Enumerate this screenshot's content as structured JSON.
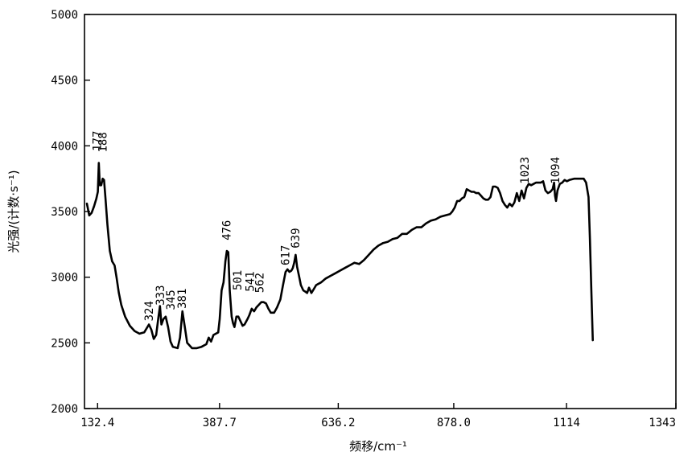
{
  "chart_data": {
    "type": "line",
    "title": "",
    "xlabel": "频移/cm⁻¹",
    "ylabel": "光强/(计数·s⁻¹)",
    "xlim": [
      105,
      1343
    ],
    "ylim": [
      2000,
      5000
    ],
    "x_ticks": [
      {
        "value": 132.4,
        "label": "132.4"
      },
      {
        "value": 387.7,
        "label": "387.7"
      },
      {
        "value": 636.2,
        "label": "636.2"
      },
      {
        "value": 878.0,
        "label": "878.0"
      },
      {
        "value": 1114,
        "label": "1114"
      },
      {
        "value": 1343,
        "label": "1343"
      }
    ],
    "y_ticks": [
      {
        "value": 2000,
        "label": "2000"
      },
      {
        "value": 2500,
        "label": "2500"
      },
      {
        "value": 3000,
        "label": "3000"
      },
      {
        "value": 3500,
        "label": "3500"
      },
      {
        "value": 4000,
        "label": "4000"
      },
      {
        "value": 4500,
        "label": "4500"
      },
      {
        "value": 5000,
        "label": "5000"
      }
    ],
    "grid": false,
    "series": [
      {
        "color": "#000000",
        "points": [
          [
            110,
            3560
          ],
          [
            115,
            3470
          ],
          [
            120,
            3490
          ],
          [
            125,
            3540
          ],
          [
            130,
            3600
          ],
          [
            133,
            3650
          ],
          [
            135,
            3870
          ],
          [
            137,
            3700
          ],
          [
            140,
            3700
          ],
          [
            143,
            3750
          ],
          [
            146,
            3740
          ],
          [
            149,
            3600
          ],
          [
            153,
            3400
          ],
          [
            158,
            3200
          ],
          [
            163,
            3120
          ],
          [
            168,
            3090
          ],
          [
            172,
            3000
          ],
          [
            177,
            2880
          ],
          [
            182,
            2790
          ],
          [
            190,
            2700
          ],
          [
            200,
            2630
          ],
          [
            210,
            2590
          ],
          [
            220,
            2570
          ],
          [
            230,
            2580
          ],
          [
            240,
            2640
          ],
          [
            245,
            2600
          ],
          [
            250,
            2530
          ],
          [
            255,
            2560
          ],
          [
            260,
            2700
          ],
          [
            263,
            2780
          ],
          [
            266,
            2640
          ],
          [
            270,
            2680
          ],
          [
            275,
            2700
          ],
          [
            280,
            2620
          ],
          [
            285,
            2510
          ],
          [
            290,
            2470
          ],
          [
            300,
            2460
          ],
          [
            305,
            2540
          ],
          [
            310,
            2740
          ],
          [
            315,
            2620
          ],
          [
            320,
            2500
          ],
          [
            330,
            2460
          ],
          [
            340,
            2460
          ],
          [
            350,
            2470
          ],
          [
            360,
            2490
          ],
          [
            365,
            2540
          ],
          [
            370,
            2510
          ],
          [
            375,
            2560
          ],
          [
            380,
            2570
          ],
          [
            385,
            2580
          ],
          [
            388,
            2680
          ],
          [
            392,
            2900
          ],
          [
            396,
            2960
          ],
          [
            400,
            3120
          ],
          [
            403,
            3200
          ],
          [
            406,
            3190
          ],
          [
            409,
            2900
          ],
          [
            413,
            2700
          ],
          [
            416,
            2650
          ],
          [
            419,
            2620
          ],
          [
            423,
            2700
          ],
          [
            427,
            2700
          ],
          [
            431,
            2670
          ],
          [
            436,
            2630
          ],
          [
            440,
            2640
          ],
          [
            446,
            2680
          ],
          [
            450,
            2710
          ],
          [
            455,
            2760
          ],
          [
            460,
            2740
          ],
          [
            465,
            2770
          ],
          [
            470,
            2790
          ],
          [
            475,
            2810
          ],
          [
            480,
            2810
          ],
          [
            485,
            2800
          ],
          [
            490,
            2760
          ],
          [
            495,
            2730
          ],
          [
            502,
            2730
          ],
          [
            508,
            2770
          ],
          [
            515,
            2830
          ],
          [
            520,
            2930
          ],
          [
            526,
            3040
          ],
          [
            530,
            3060
          ],
          [
            534,
            3040
          ],
          [
            538,
            3050
          ],
          [
            541,
            3070
          ],
          [
            544,
            3110
          ],
          [
            547,
            3170
          ],
          [
            550,
            3080
          ],
          [
            554,
            3010
          ],
          [
            558,
            2940
          ],
          [
            563,
            2900
          ],
          [
            567,
            2890
          ],
          [
            571,
            2880
          ],
          [
            575,
            2920
          ],
          [
            580,
            2880
          ],
          [
            585,
            2910
          ],
          [
            590,
            2940
          ],
          [
            600,
            2960
          ],
          [
            610,
            2990
          ],
          [
            620,
            3010
          ],
          [
            630,
            3030
          ],
          [
            640,
            3050
          ],
          [
            650,
            3070
          ],
          [
            660,
            3090
          ],
          [
            670,
            3110
          ],
          [
            680,
            3100
          ],
          [
            690,
            3130
          ],
          [
            700,
            3170
          ],
          [
            710,
            3210
          ],
          [
            720,
            3240
          ],
          [
            730,
            3260
          ],
          [
            740,
            3270
          ],
          [
            750,
            3290
          ],
          [
            760,
            3300
          ],
          [
            770,
            3330
          ],
          [
            780,
            3330
          ],
          [
            790,
            3360
          ],
          [
            800,
            3380
          ],
          [
            810,
            3380
          ],
          [
            820,
            3410
          ],
          [
            830,
            3430
          ],
          [
            840,
            3440
          ],
          [
            850,
            3460
          ],
          [
            860,
            3470
          ],
          [
            870,
            3480
          ],
          [
            875,
            3500
          ],
          [
            880,
            3530
          ],
          [
            885,
            3580
          ],
          [
            890,
            3580
          ],
          [
            895,
            3600
          ],
          [
            900,
            3610
          ],
          [
            905,
            3670
          ],
          [
            910,
            3660
          ],
          [
            915,
            3650
          ],
          [
            920,
            3650
          ],
          [
            925,
            3640
          ],
          [
            930,
            3640
          ],
          [
            935,
            3620
          ],
          [
            940,
            3600
          ],
          [
            945,
            3590
          ],
          [
            950,
            3590
          ],
          [
            955,
            3610
          ],
          [
            960,
            3690
          ],
          [
            965,
            3690
          ],
          [
            970,
            3680
          ],
          [
            975,
            3640
          ],
          [
            980,
            3580
          ],
          [
            985,
            3550
          ],
          [
            990,
            3530
          ],
          [
            995,
            3560
          ],
          [
            1000,
            3540
          ],
          [
            1005,
            3570
          ],
          [
            1010,
            3640
          ],
          [
            1015,
            3580
          ],
          [
            1020,
            3660
          ],
          [
            1025,
            3600
          ],
          [
            1030,
            3680
          ],
          [
            1035,
            3710
          ],
          [
            1040,
            3700
          ],
          [
            1045,
            3710
          ],
          [
            1050,
            3720
          ],
          [
            1055,
            3720
          ],
          [
            1060,
            3720
          ],
          [
            1065,
            3730
          ],
          [
            1070,
            3660
          ],
          [
            1075,
            3640
          ],
          [
            1080,
            3650
          ],
          [
            1085,
            3670
          ],
          [
            1088,
            3720
          ],
          [
            1090,
            3620
          ],
          [
            1092,
            3580
          ],
          [
            1095,
            3660
          ],
          [
            1100,
            3710
          ],
          [
            1105,
            3720
          ],
          [
            1110,
            3740
          ],
          [
            1115,
            3730
          ],
          [
            1120,
            3740
          ],
          [
            1130,
            3750
          ],
          [
            1140,
            3750
          ],
          [
            1150,
            3750
          ],
          [
            1155,
            3720
          ],
          [
            1160,
            3610
          ],
          [
            1163,
            3300
          ],
          [
            1166,
            2900
          ],
          [
            1169,
            2520
          ]
        ]
      }
    ],
    "annotations": [
      {
        "text": "177",
        "x": 131,
        "y": 3960
      },
      {
        "text": "188",
        "x": 143,
        "y": 3950
      },
      {
        "text": "324",
        "x": 240,
        "y": 2665
      },
      {
        "text": "333",
        "x": 263,
        "y": 2785
      },
      {
        "text": "345",
        "x": 285,
        "y": 2750
      },
      {
        "text": "381",
        "x": 309,
        "y": 2760
      },
      {
        "text": "476",
        "x": 402,
        "y": 3280
      },
      {
        "text": "501",
        "x": 425,
        "y": 2900
      },
      {
        "text": "541",
        "x": 451,
        "y": 2890
      },
      {
        "text": "562",
        "x": 471,
        "y": 2880
      },
      {
        "text": "617",
        "x": 525,
        "y": 3090
      },
      {
        "text": "639",
        "x": 546,
        "y": 3220
      },
      {
        "text": "1023",
        "x": 1026,
        "y": 3710
      },
      {
        "text": "1094",
        "x": 1090,
        "y": 3710
      }
    ]
  }
}
